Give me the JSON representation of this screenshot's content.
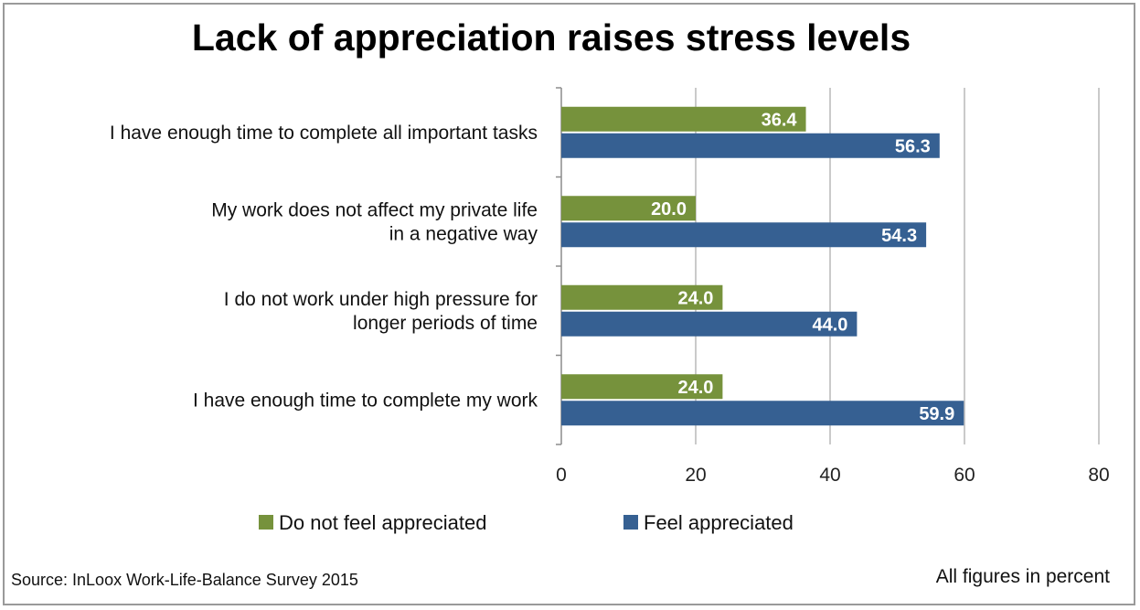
{
  "title": "Lack of appreciation raises stress levels",
  "source": "Source: InLoox Work-Life-Balance Survey 2015",
  "note": "All figures in percent",
  "colors": {
    "not_appreciated": "#76923c",
    "appreciated": "#366092"
  },
  "chart_data": {
    "type": "bar",
    "orientation": "horizontal",
    "title": "Lack of appreciation raises stress levels",
    "categories": [
      [
        "I have enough time to complete all important tasks"
      ],
      [
        "My work does not affect my private life",
        "in a negative way"
      ],
      [
        "I do not work under high pressure for",
        "longer periods of time"
      ],
      [
        "I have enough time to complete my work"
      ]
    ],
    "series": [
      {
        "name": "Do not feel appreciated",
        "values": [
          36.4,
          20.0,
          24.0,
          24.0
        ],
        "labels": [
          "36.4",
          "20.0",
          "24.0",
          "24.0"
        ]
      },
      {
        "name": "Feel appreciated",
        "values": [
          56.3,
          54.3,
          44.0,
          59.9
        ],
        "labels": [
          "56.3",
          "54.3",
          "44.0",
          "59.9"
        ]
      }
    ],
    "xlim": [
      0,
      80
    ],
    "xticks": [
      0,
      20,
      40,
      60,
      80
    ],
    "grid": true,
    "legend": "bottom",
    "xlabel": "",
    "ylabel": ""
  }
}
